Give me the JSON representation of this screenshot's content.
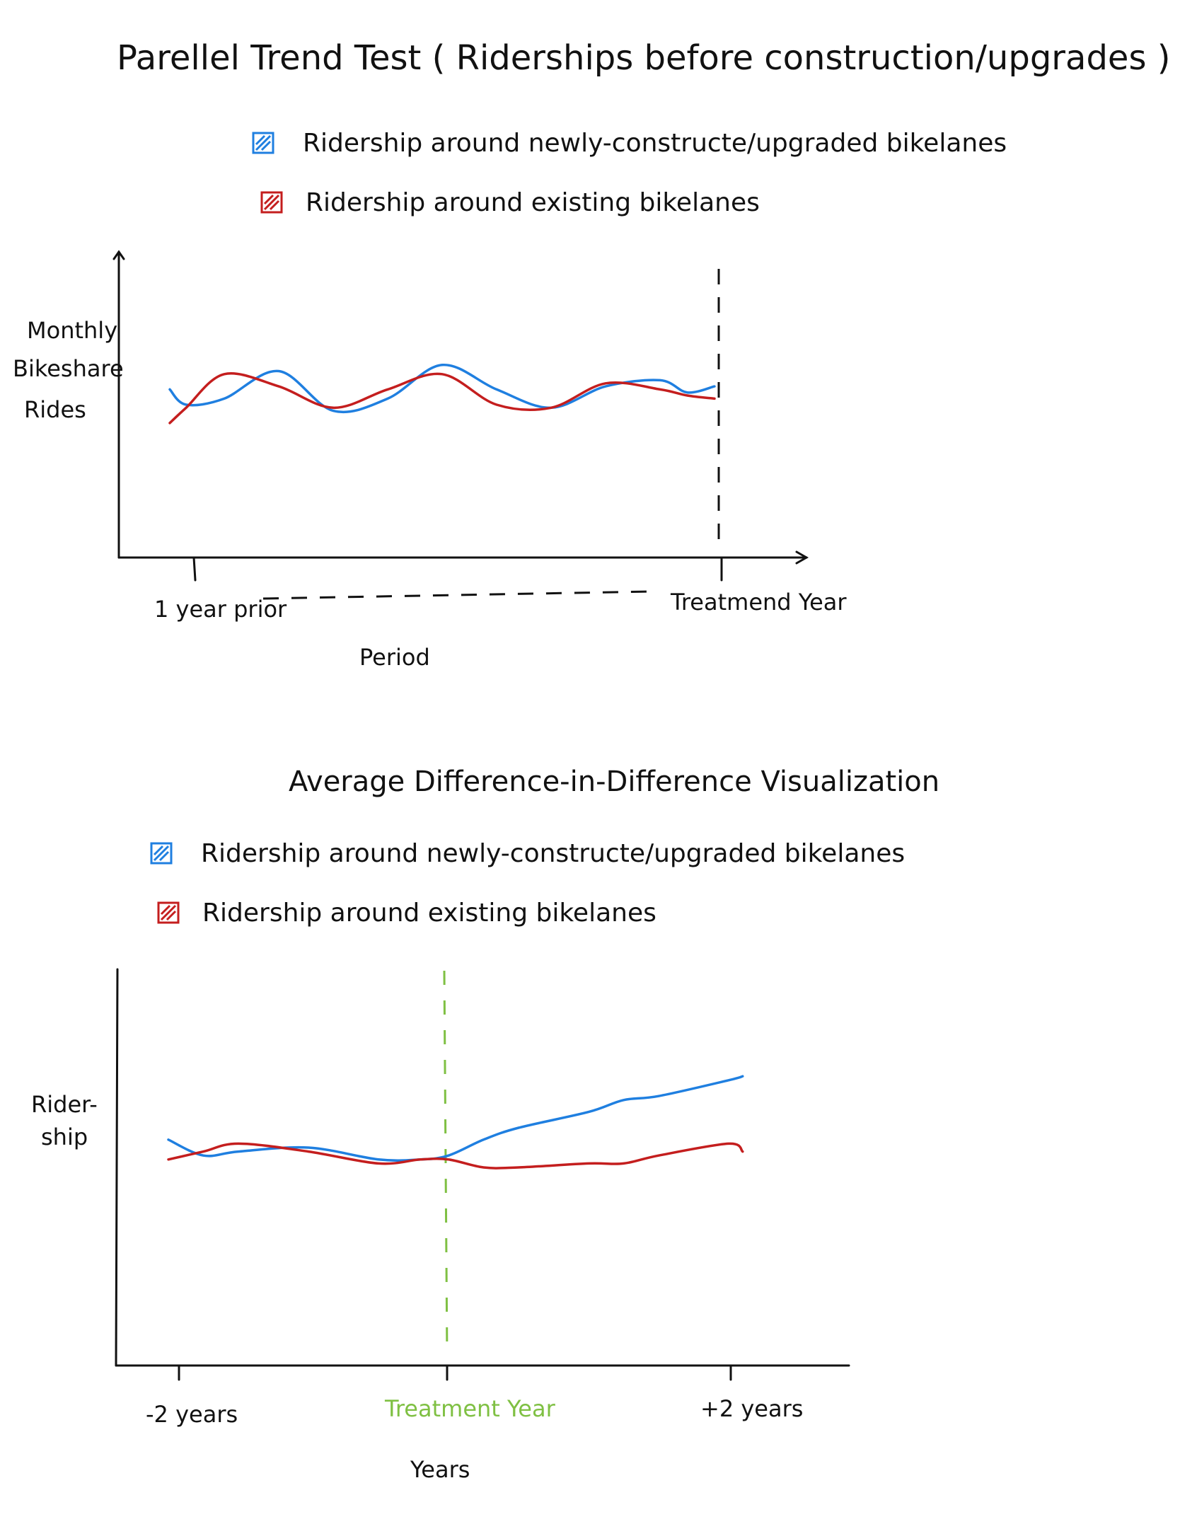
{
  "colors": {
    "new_lanes": "#1f7fe0",
    "existing_lanes": "#c41e1e",
    "treatment_line": "#7fc043",
    "ink": "#111111"
  },
  "chart_data": [
    {
      "type": "line",
      "title": "Parellel Trend Test ( Riderships before construction/upgrades )",
      "legend": [
        "Ridership around newly-constructe/upgraded bikelanes",
        "Ridership around existing bikelanes"
      ],
      "ylabel": [
        "Monthly",
        "Bikeshare",
        "Rides"
      ],
      "xlabel": "Period",
      "tick_labels": [
        "1 year prior",
        "Treatmend Year"
      ],
      "treatment_marker": "dashed vertical line at Treatmend Year",
      "x": [
        0,
        0.03,
        0.1,
        0.2,
        0.3,
        0.4,
        0.5,
        0.6,
        0.7,
        0.8,
        0.9,
        0.95,
        1.0
      ],
      "series": [
        {
          "name": "Ridership around newly-constructe/upgraded bikelanes",
          "color": "new_lanes",
          "values": [
            0.55,
            0.5,
            0.52,
            0.61,
            0.48,
            0.52,
            0.63,
            0.55,
            0.49,
            0.56,
            0.58,
            0.54,
            0.56
          ]
        },
        {
          "name": "Ridership around existing bikelanes",
          "color": "existing_lanes",
          "values": [
            0.44,
            0.49,
            0.6,
            0.56,
            0.49,
            0.55,
            0.6,
            0.5,
            0.49,
            0.57,
            0.55,
            0.53,
            0.52
          ]
        }
      ],
      "ylim": [
        0,
        1
      ]
    },
    {
      "type": "line",
      "title": "Average Difference-in-Difference Visualization",
      "legend": [
        "Ridership around newly-constructe/upgraded bikelanes",
        "Ridership around existing bikelanes"
      ],
      "ylabel": [
        "Rider-",
        "ship"
      ],
      "xlabel": "Years",
      "tick_labels": [
        "-2 years",
        "Treatment Year",
        "+2 years"
      ],
      "treatment_marker": "green dashed vertical line at Treatment Year",
      "x": [
        -2,
        -1.75,
        -1.5,
        -1.0,
        -0.5,
        -0.2,
        0,
        0.25,
        0.5,
        1.0,
        1.25,
        1.5,
        2.0,
        2.1
      ],
      "series": [
        {
          "name": "Ridership around newly-constructe/upgraded bikelanes",
          "color": "new_lanes",
          "values": [
            0.57,
            0.53,
            0.54,
            0.55,
            0.52,
            0.52,
            0.53,
            0.57,
            0.6,
            0.64,
            0.67,
            0.68,
            0.72,
            0.73
          ]
        },
        {
          "name": "Ridership around existing bikelanes",
          "color": "existing_lanes",
          "values": [
            0.52,
            0.54,
            0.56,
            0.54,
            0.51,
            0.52,
            0.52,
            0.5,
            0.5,
            0.51,
            0.51,
            0.53,
            0.56,
            0.54
          ]
        }
      ],
      "ylim": [
        0,
        1
      ]
    }
  ]
}
